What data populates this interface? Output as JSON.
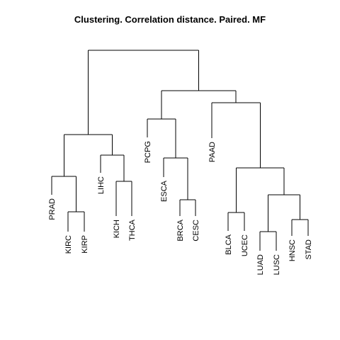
{
  "title": "Clustering. Correlation distance. Paired. MF",
  "dendrogram": {
    "leaves": [
      "PRAD",
      "KIRC",
      "KIRP",
      "LIHC",
      "KICH",
      "THCA",
      "PCPG",
      "ESCA",
      "BRCA",
      "CESC",
      "PAAD",
      "BLCA",
      "UCEC",
      "LUAD",
      "LUSC",
      "HNSC",
      "STAD"
    ]
  }
}
